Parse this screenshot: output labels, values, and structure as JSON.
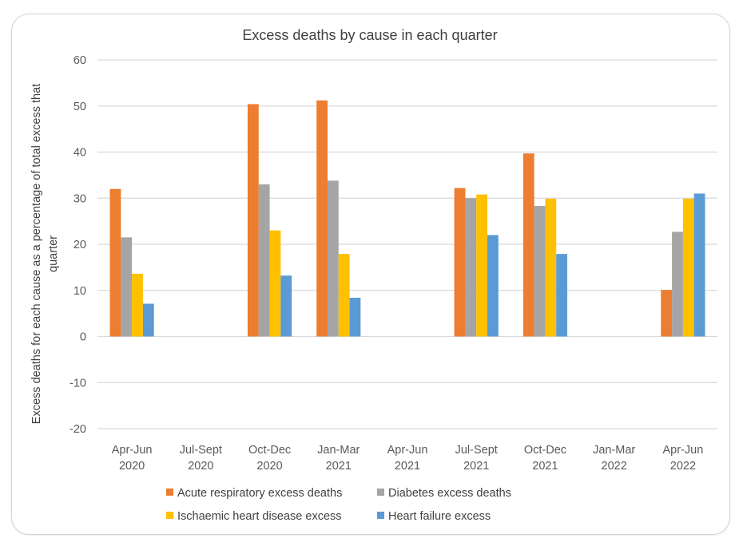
{
  "chart_data": {
    "type": "bar",
    "title": "Excess deaths by cause in each quarter",
    "xlabel": "",
    "ylabel_lines": [
      "Excess deaths for each cause as a percentage of total excess that",
      "quarter"
    ],
    "ylim": [
      -20,
      60
    ],
    "yticks": [
      60,
      50,
      40,
      30,
      20,
      10,
      0,
      -10,
      -20
    ],
    "grid": true,
    "legend_position": "bottom",
    "categories": [
      [
        "Apr-Jun",
        "2020"
      ],
      [
        "Jul-Sept",
        "2020"
      ],
      [
        "Oct-Dec",
        "2020"
      ],
      [
        "Jan-Mar",
        "2021"
      ],
      [
        "Apr-Jun",
        "2021"
      ],
      [
        "Jul-Sept",
        "2021"
      ],
      [
        "Oct-Dec",
        "2021"
      ],
      [
        "Jan-Mar",
        "2022"
      ],
      [
        "Apr-Jun",
        "2022"
      ]
    ],
    "series": [
      {
        "name": "Acute respiratory excess deaths",
        "color": "#ED7D31",
        "values": [
          32.0,
          null,
          50.4,
          51.2,
          null,
          32.2,
          39.7,
          null,
          10.1
        ]
      },
      {
        "name": "Diabetes excess deaths",
        "color": "#A5A5A5",
        "values": [
          21.5,
          null,
          33.0,
          33.8,
          null,
          30.0,
          28.3,
          null,
          22.7
        ]
      },
      {
        "name": "Ischaemic heart disease excess",
        "color": "#FFC000",
        "values": [
          13.6,
          null,
          23.0,
          17.9,
          null,
          30.8,
          29.9,
          null,
          29.9
        ]
      },
      {
        "name": "Heart failure excess",
        "color": "#5B9BD5",
        "values": [
          7.1,
          null,
          13.2,
          8.4,
          null,
          22.0,
          17.9,
          null,
          31.0
        ]
      }
    ]
  }
}
